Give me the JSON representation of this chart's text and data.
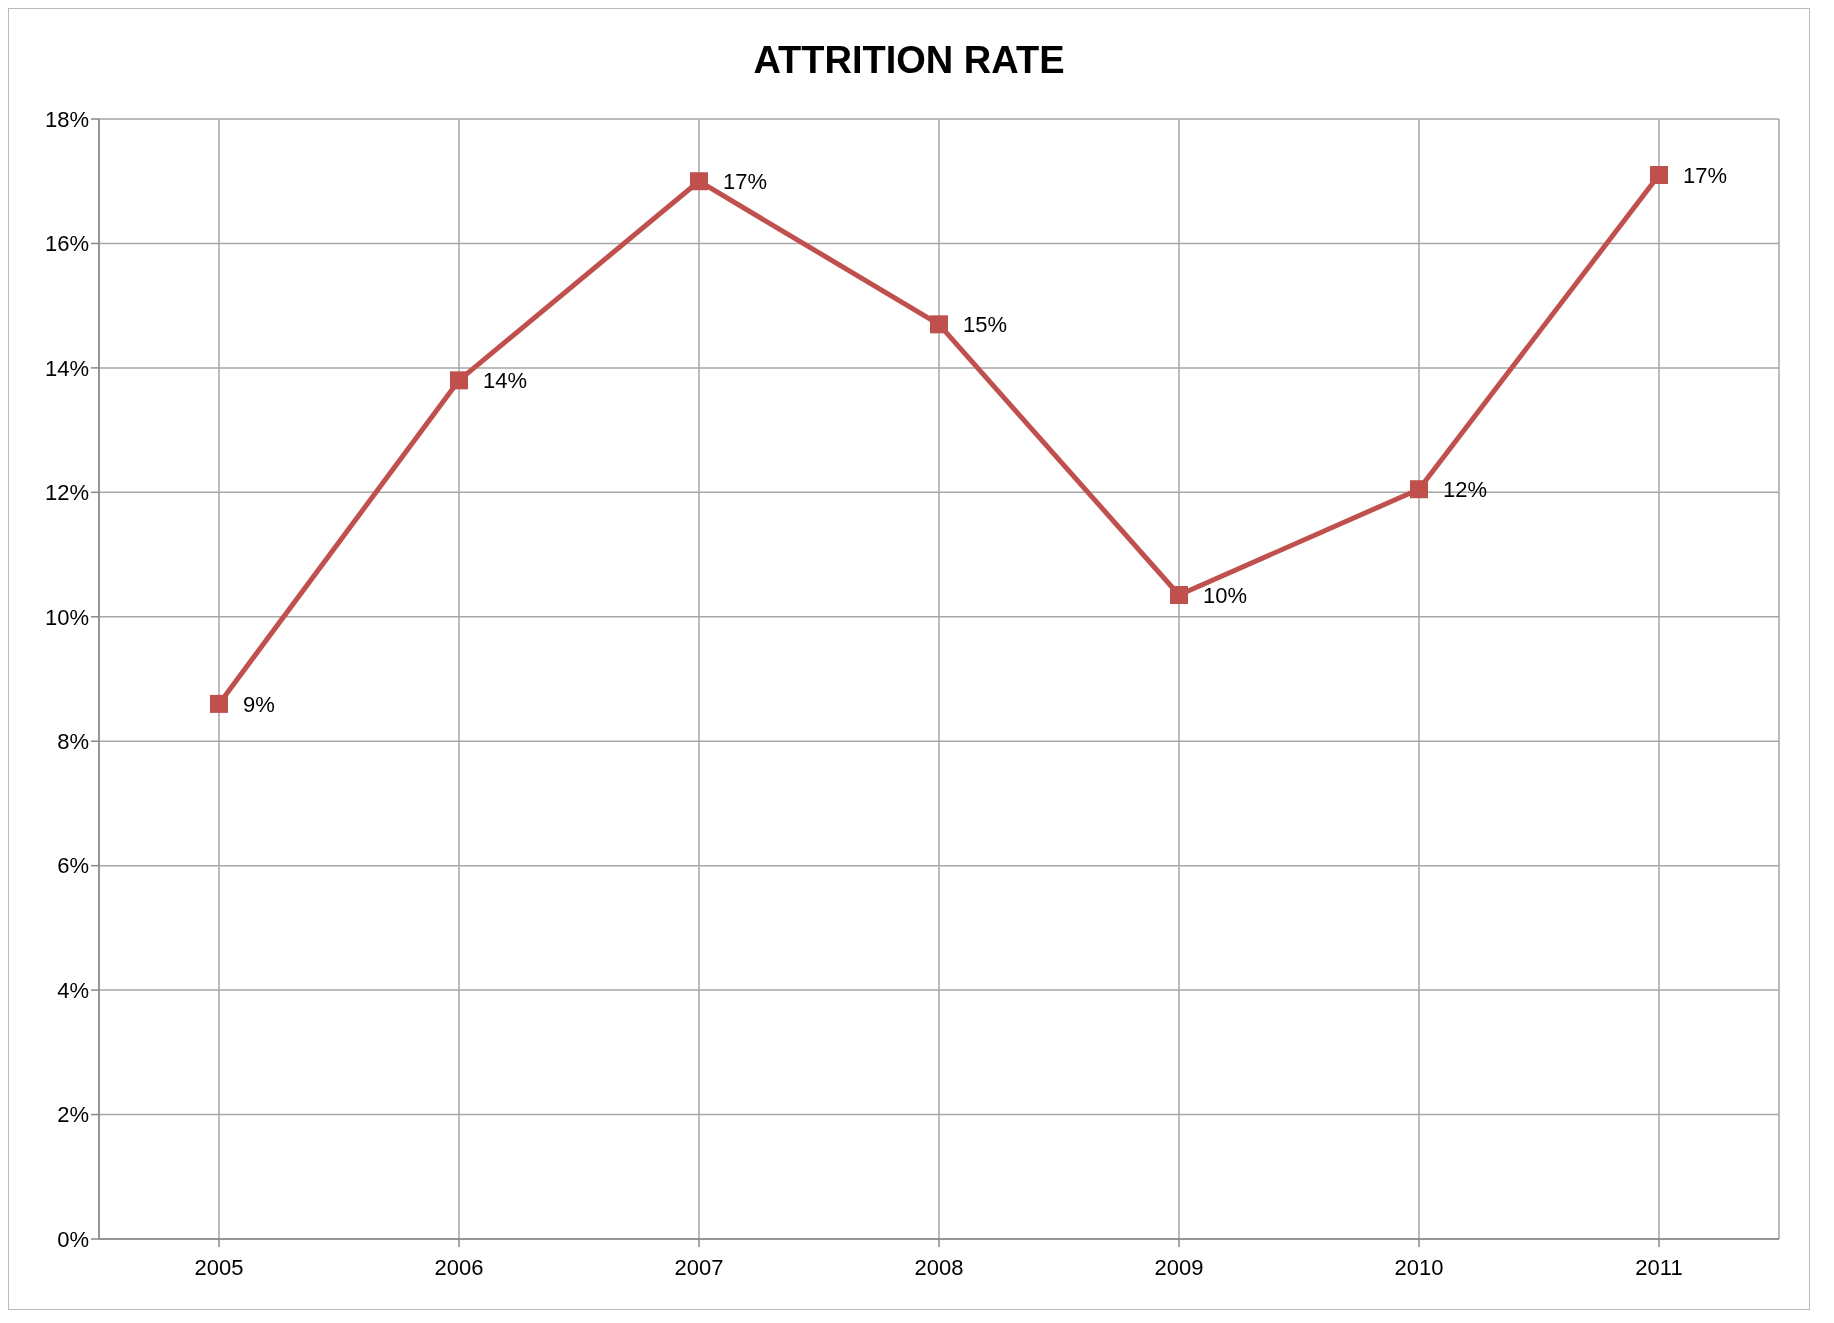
{
  "chart_data": {
    "type": "line",
    "title": "ATTRITION RATE",
    "categories": [
      "2005",
      "2006",
      "2007",
      "2008",
      "2009",
      "2010",
      "2011"
    ],
    "series": [
      {
        "color": "#c0504d",
        "values": [
          8.6,
          13.8,
          17.0,
          14.7,
          10.35,
          12.05,
          17.1
        ],
        "value_labels": [
          "9%",
          "14%",
          "17%",
          "15%",
          "10%",
          "12%",
          "17%"
        ]
      }
    ],
    "ylim": [
      0,
      18
    ],
    "yticks": [
      {
        "value": 0,
        "label": "0%"
      },
      {
        "value": 2,
        "label": "2%"
      },
      {
        "value": 4,
        "label": "4%"
      },
      {
        "value": 6,
        "label": "6%"
      },
      {
        "value": 8,
        "label": "8%"
      },
      {
        "value": 10,
        "label": "10%"
      },
      {
        "value": 12,
        "label": "12%"
      },
      {
        "value": 14,
        "label": "14%"
      },
      {
        "value": 16,
        "label": "16%"
      },
      {
        "value": 18,
        "label": "18%"
      }
    ],
    "grid": true,
    "marker": "square",
    "line_style": "solid"
  }
}
